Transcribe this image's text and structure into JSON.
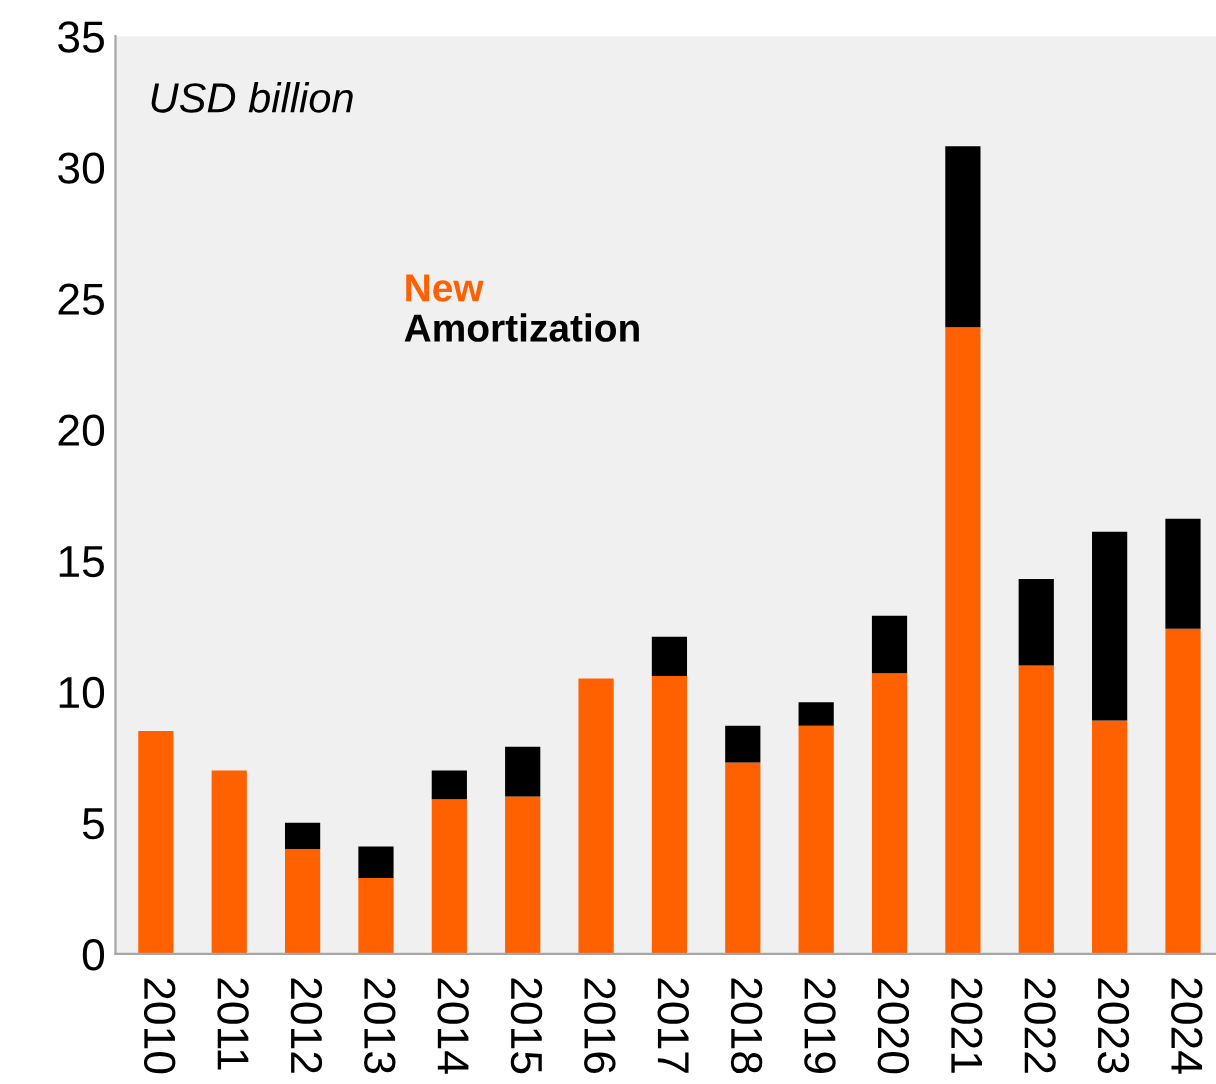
{
  "chart_data": {
    "type": "bar",
    "stacked": true,
    "annotations": [
      "USD billion"
    ],
    "categories": [
      "2010",
      "2011",
      "2012",
      "2013",
      "2014",
      "2015",
      "2016",
      "2017",
      "2018",
      "2019",
      "2020",
      "2021",
      "2022",
      "2023",
      "2024"
    ],
    "series": [
      {
        "name": "New",
        "color": "#ff6000",
        "values": [
          8.5,
          7.0,
          4.0,
          2.9,
          5.9,
          6.0,
          10.5,
          10.6,
          7.3,
          8.7,
          10.7,
          23.9,
          11.0,
          8.9,
          12.4
        ]
      },
      {
        "name": "Amortization",
        "color": "#000000",
        "values": [
          null,
          null,
          1.0,
          1.2,
          1.1,
          1.9,
          null,
          1.5,
          1.4,
          0.9,
          2.2,
          6.9,
          3.3,
          7.2,
          4.2
        ]
      }
    ],
    "ylim": [
      0,
      35
    ],
    "yticks": [
      0,
      5,
      10,
      15,
      20,
      25,
      30,
      35
    ],
    "grid": false,
    "legend": "top left"
  }
}
